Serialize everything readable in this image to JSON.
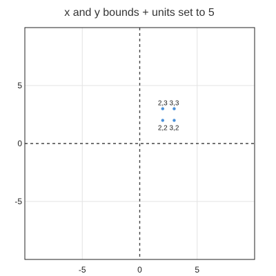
{
  "chart_data": {
    "type": "scatter",
    "title": "x and y bounds + units set to 5",
    "xlabel": "",
    "ylabel": "",
    "xlim": [
      -10,
      10
    ],
    "ylim": [
      -10,
      10
    ],
    "x_ticks": [
      -5,
      0,
      5
    ],
    "y_ticks": [
      -5,
      0,
      5
    ],
    "x_tick_labels": [
      "-5",
      "0",
      "5"
    ],
    "y_tick_labels": [
      "-5",
      "0",
      "5"
    ],
    "grid": true,
    "zero_lines": "dashed",
    "series": [
      {
        "color": "#4a90d9",
        "points": [
          {
            "x": 2,
            "y": 3,
            "label": "2,3",
            "label_position": "above"
          },
          {
            "x": 3,
            "y": 3,
            "label": "3,3",
            "label_position": "above"
          },
          {
            "x": 2,
            "y": 2,
            "label": "2,2",
            "label_position": "below"
          },
          {
            "x": 3,
            "y": 2,
            "label": "3,2",
            "label_position": "below"
          }
        ]
      }
    ]
  }
}
